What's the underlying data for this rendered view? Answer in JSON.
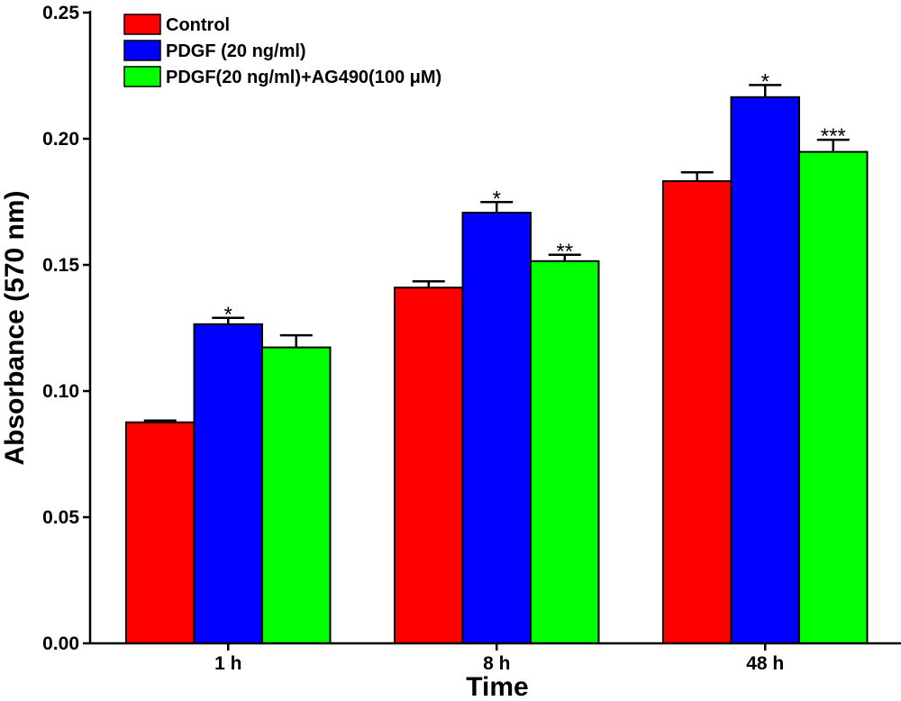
{
  "chart_data": {
    "type": "bar",
    "title": "",
    "xlabel": "Time",
    "ylabel": "Absorbance (570 nm)",
    "ylim": [
      0,
      0.25
    ],
    "yticks": [
      "0.00",
      "0.05",
      "0.10",
      "0.15",
      "0.20",
      "0.25"
    ],
    "categories": [
      "1 h",
      "8 h",
      "48 h"
    ],
    "grid": false,
    "legend_position": "top-left",
    "series": [
      {
        "name": "Control",
        "color": "#ff0000",
        "values": [
          0.0876,
          0.141,
          0.1832
        ],
        "errors": [
          0.0007,
          0.0025,
          0.0035
        ],
        "annotations": [
          "",
          "",
          ""
        ]
      },
      {
        "name": "PDGF (20 ng/ml)",
        "color": "#0000ff",
        "values": [
          0.1265,
          0.1707,
          0.2165
        ],
        "errors": [
          0.0025,
          0.0042,
          0.0048
        ],
        "annotations": [
          "*",
          "*",
          "*"
        ]
      },
      {
        "name": "PDGF(20 ng/ml)+AG490(100 μM)",
        "color": "#00ff00",
        "values": [
          0.1173,
          0.1515,
          0.1948
        ],
        "errors": [
          0.0048,
          0.0025,
          0.0048
        ],
        "annotations": [
          "",
          "**",
          "***"
        ]
      }
    ]
  }
}
